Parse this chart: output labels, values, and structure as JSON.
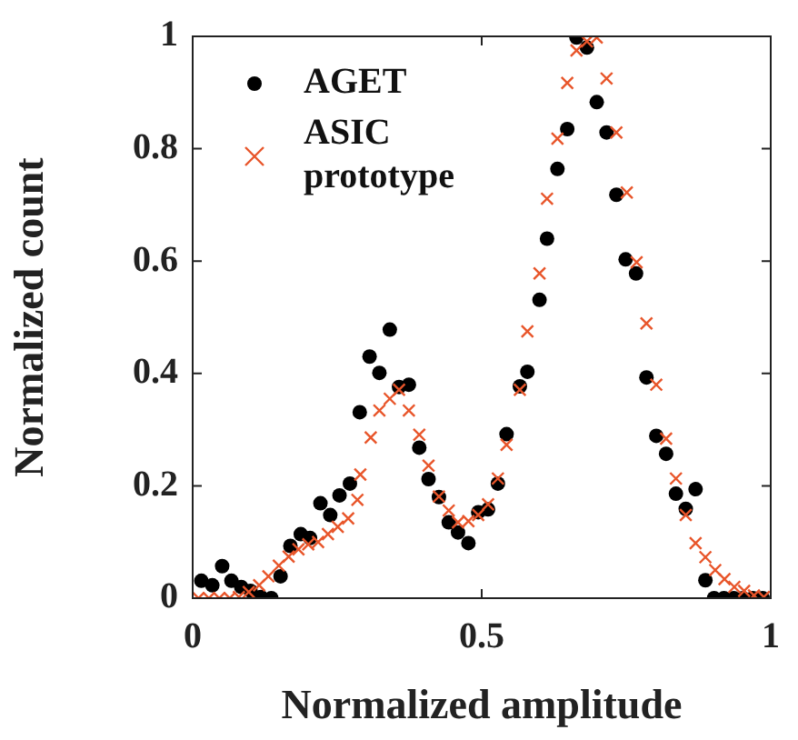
{
  "chart_data": {
    "type": "scatter",
    "xlabel": "Normalized amplitude",
    "ylabel": "Normalized count",
    "xlim": [
      0,
      1
    ],
    "xticks": [
      0,
      0.5,
      1
    ],
    "ylim": [
      0,
      1
    ],
    "yticks": [
      0,
      0.2,
      0.4,
      0.6,
      0.8,
      1
    ],
    "grid": false,
    "legend": "top left",
    "series": [
      {
        "name": "AGET",
        "color": "#000000",
        "marker": "circle",
        "x": [
          0.015,
          0.034,
          0.051,
          0.067,
          0.084,
          0.1,
          0.118,
          0.136,
          0.152,
          0.169,
          0.187,
          0.203,
          0.221,
          0.238,
          0.254,
          0.272,
          0.289,
          0.306,
          0.323,
          0.341,
          0.357,
          0.374,
          0.392,
          0.408,
          0.426,
          0.443,
          0.459,
          0.477,
          0.494,
          0.511,
          0.528,
          0.543,
          0.566,
          0.579,
          0.6,
          0.613,
          0.631,
          0.648,
          0.664,
          0.682,
          0.699,
          0.716,
          0.733,
          0.749,
          0.767,
          0.785,
          0.802,
          0.819,
          0.836,
          0.853,
          0.87,
          0.887,
          0.902,
          0.919,
          0.936,
          0.952,
          0.969,
          0.986
        ],
        "values": [
          0.031,
          0.023,
          0.057,
          0.031,
          0.02,
          0.013,
          0.002,
          0,
          0.039,
          0.093,
          0.114,
          0.107,
          0.169,
          0.148,
          0.183,
          0.204,
          0.331,
          0.43,
          0.401,
          0.478,
          0.376,
          0.38,
          0.268,
          0.212,
          0.18,
          0.135,
          0.117,
          0.098,
          0.153,
          0.158,
          0.204,
          0.292,
          0.377,
          0.403,
          0.531,
          0.64,
          0.764,
          0.835,
          0.998,
          0.98,
          0.883,
          0.829,
          0.718,
          0.603,
          0.578,
          0.393,
          0.289,
          0.257,
          0.186,
          0.159,
          0.194,
          0.032,
          0,
          0,
          0,
          0,
          0,
          0
        ]
      },
      {
        "name": "ASIC prototype",
        "color": "#e8552a",
        "marker": "cross",
        "x": [
          0.01,
          0.028,
          0.046,
          0.064,
          0.08,
          0.097,
          0.115,
          0.131,
          0.149,
          0.166,
          0.183,
          0.2,
          0.217,
          0.234,
          0.251,
          0.269,
          0.285,
          0.29,
          0.308,
          0.323,
          0.341,
          0.357,
          0.374,
          0.392,
          0.408,
          0.426,
          0.443,
          0.459,
          0.477,
          0.494,
          0.511,
          0.528,
          0.543,
          0.566,
          0.579,
          0.6,
          0.613,
          0.631,
          0.648,
          0.664,
          0.682,
          0.699,
          0.716,
          0.733,
          0.751,
          0.768,
          0.785,
          0.802,
          0.819,
          0.836,
          0.853,
          0.87,
          0.887,
          0.904,
          0.92,
          0.937,
          0.954,
          0.971,
          0.988
        ],
        "values": [
          0,
          0,
          0,
          0,
          0.002,
          0.011,
          0.023,
          0.039,
          0.058,
          0.074,
          0.087,
          0.096,
          0.1,
          0.114,
          0.127,
          0.142,
          0.175,
          0.22,
          0.286,
          0.334,
          0.355,
          0.371,
          0.334,
          0.291,
          0.236,
          0.181,
          0.156,
          0.135,
          0.137,
          0.148,
          0.167,
          0.213,
          0.273,
          0.371,
          0.475,
          0.578,
          0.711,
          0.818,
          0.917,
          0.975,
          0.991,
          0.998,
          0.925,
          0.829,
          0.722,
          0.598,
          0.489,
          0.38,
          0.284,
          0.213,
          0.148,
          0.098,
          0.073,
          0.05,
          0.034,
          0.02,
          0.013,
          0.005,
          0.002
        ]
      }
    ]
  }
}
